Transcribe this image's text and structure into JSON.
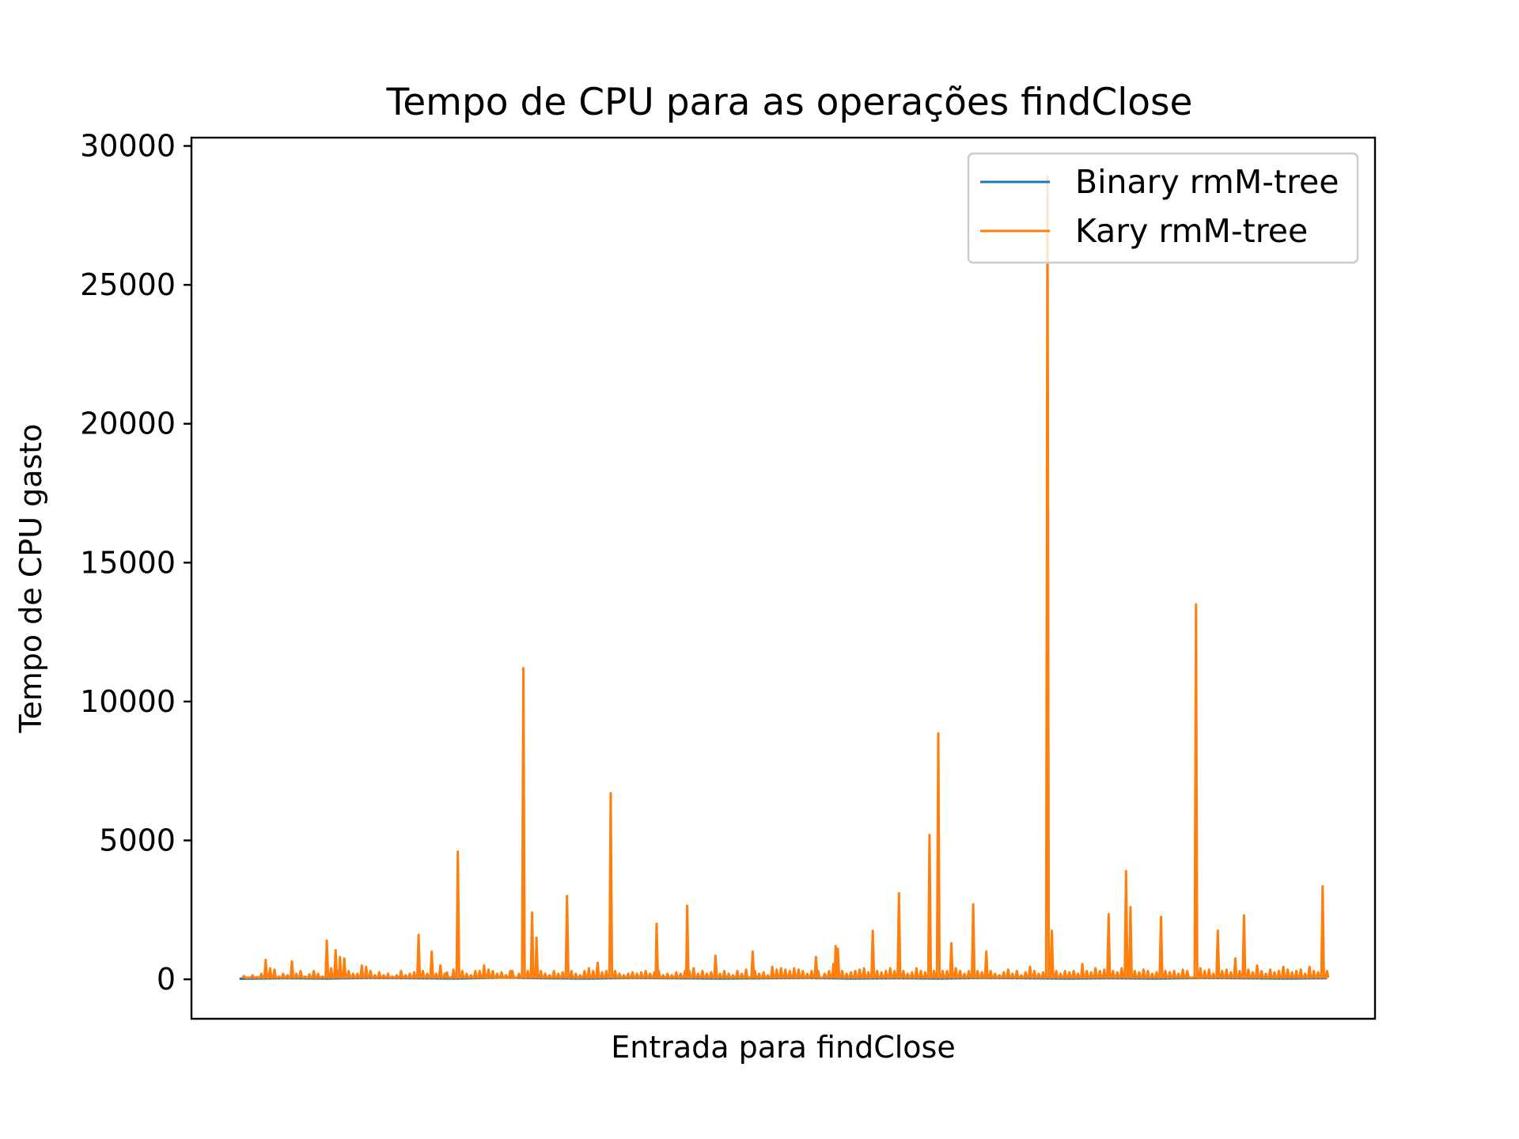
{
  "chart_data": {
    "type": "line",
    "title": "Tempo de CPU para as operações findClose",
    "xlabel": "Entrada para findClose",
    "ylabel": "Tempo de CPU gasto",
    "ylim": [
      -1420,
      30300
    ],
    "xlim": [
      -22,
      520
    ],
    "yticks": [
      0,
      5000,
      10000,
      15000,
      20000,
      25000,
      30000
    ],
    "ytick_labels": [
      "0",
      "5000",
      "10000",
      "15000",
      "20000",
      "25000",
      "30000"
    ],
    "xticks_visible": false,
    "grid": false,
    "legend_position": "top-right",
    "series": [
      {
        "name": "Binary rmM-tree",
        "color": "#1f77b4",
        "x": [
          0,
          20,
          40,
          60,
          80,
          100,
          120,
          140,
          160,
          180,
          200,
          220,
          240,
          260,
          280,
          300,
          320,
          340,
          360,
          380,
          400,
          420,
          440,
          460,
          480,
          498
        ],
        "y": [
          20,
          40,
          30,
          50,
          40,
          30,
          60,
          40,
          30,
          50,
          40,
          30,
          40,
          50,
          30,
          40,
          30,
          50,
          40,
          30,
          40,
          30,
          50,
          40,
          30,
          40
        ]
      },
      {
        "name": "Kary rmM-tree",
        "color": "#ff7f0e",
        "baseline": 60,
        "peaks": [
          [
            2,
            120
          ],
          [
            4,
            60
          ],
          [
            6,
            150
          ],
          [
            8,
            80
          ],
          [
            10,
            200
          ],
          [
            12,
            700
          ],
          [
            14,
            400
          ],
          [
            16,
            350
          ],
          [
            18,
            100
          ],
          [
            20,
            200
          ],
          [
            22,
            150
          ],
          [
            24,
            650
          ],
          [
            26,
            200
          ],
          [
            28,
            300
          ],
          [
            30,
            100
          ],
          [
            32,
            180
          ],
          [
            34,
            300
          ],
          [
            36,
            200
          ],
          [
            38,
            100
          ],
          [
            40,
            1400
          ],
          [
            42,
            400
          ],
          [
            44,
            1050
          ],
          [
            45,
            300
          ],
          [
            46,
            800
          ],
          [
            48,
            750
          ],
          [
            50,
            300
          ],
          [
            52,
            200
          ],
          [
            54,
            200
          ],
          [
            56,
            500
          ],
          [
            58,
            450
          ],
          [
            60,
            300
          ],
          [
            62,
            150
          ],
          [
            64,
            250
          ],
          [
            66,
            150
          ],
          [
            68,
            200
          ],
          [
            70,
            100
          ],
          [
            72,
            150
          ],
          [
            74,
            300
          ],
          [
            76,
            150
          ],
          [
            78,
            200
          ],
          [
            80,
            250
          ],
          [
            82,
            1600
          ],
          [
            84,
            300
          ],
          [
            86,
            200
          ],
          [
            88,
            1000
          ],
          [
            90,
            200
          ],
          [
            92,
            500
          ],
          [
            94,
            200
          ],
          [
            95,
            250
          ],
          [
            98,
            350
          ],
          [
            100,
            4600
          ],
          [
            102,
            300
          ],
          [
            104,
            200
          ],
          [
            106,
            150
          ],
          [
            108,
            300
          ],
          [
            110,
            300
          ],
          [
            112,
            500
          ],
          [
            114,
            350
          ],
          [
            116,
            300
          ],
          [
            118,
            200
          ],
          [
            120,
            250
          ],
          [
            122,
            150
          ],
          [
            124,
            300
          ],
          [
            125,
            300
          ],
          [
            128,
            200
          ],
          [
            130,
            11200
          ],
          [
            132,
            300
          ],
          [
            134,
            2400
          ],
          [
            135,
            350
          ],
          [
            136,
            1500
          ],
          [
            138,
            300
          ],
          [
            140,
            200
          ],
          [
            142,
            150
          ],
          [
            144,
            300
          ],
          [
            146,
            200
          ],
          [
            148,
            250
          ],
          [
            150,
            3000
          ],
          [
            152,
            300
          ],
          [
            154,
            200
          ],
          [
            156,
            150
          ],
          [
            158,
            300
          ],
          [
            160,
            400
          ],
          [
            162,
            300
          ],
          [
            164,
            600
          ],
          [
            166,
            250
          ],
          [
            168,
            300
          ],
          [
            170,
            6700
          ],
          [
            172,
            300
          ],
          [
            174,
            200
          ],
          [
            176,
            150
          ],
          [
            178,
            200
          ],
          [
            180,
            250
          ],
          [
            182,
            200
          ],
          [
            184,
            250
          ],
          [
            186,
            300
          ],
          [
            188,
            200
          ],
          [
            190,
            250
          ],
          [
            191,
            2000
          ],
          [
            192,
            300
          ],
          [
            194,
            150
          ],
          [
            196,
            200
          ],
          [
            198,
            150
          ],
          [
            200,
            250
          ],
          [
            202,
            200
          ],
          [
            204,
            300
          ],
          [
            205,
            2650
          ],
          [
            206,
            300
          ],
          [
            208,
            400
          ],
          [
            210,
            200
          ],
          [
            212,
            300
          ],
          [
            214,
            200
          ],
          [
            216,
            250
          ],
          [
            218,
            850
          ],
          [
            220,
            200
          ],
          [
            222,
            300
          ],
          [
            224,
            200
          ],
          [
            226,
            150
          ],
          [
            228,
            300
          ],
          [
            230,
            200
          ],
          [
            232,
            350
          ],
          [
            235,
            1000
          ],
          [
            236,
            300
          ],
          [
            238,
            200
          ],
          [
            240,
            250
          ],
          [
            242,
            150
          ],
          [
            244,
            450
          ],
          [
            246,
            350
          ],
          [
            248,
            400
          ],
          [
            250,
            350
          ],
          [
            252,
            300
          ],
          [
            254,
            400
          ],
          [
            256,
            350
          ],
          [
            258,
            300
          ],
          [
            260,
            200
          ],
          [
            262,
            300
          ],
          [
            264,
            800
          ],
          [
            265,
            300
          ],
          [
            268,
            200
          ],
          [
            270,
            300
          ],
          [
            272,
            550
          ],
          [
            273,
            1200
          ],
          [
            274,
            1100
          ],
          [
            276,
            300
          ],
          [
            278,
            200
          ],
          [
            280,
            250
          ],
          [
            282,
            300
          ],
          [
            284,
            350
          ],
          [
            286,
            400
          ],
          [
            288,
            250
          ],
          [
            290,
            1750
          ],
          [
            292,
            300
          ],
          [
            294,
            250
          ],
          [
            296,
            300
          ],
          [
            298,
            400
          ],
          [
            300,
            300
          ],
          [
            302,
            3100
          ],
          [
            304,
            300
          ],
          [
            306,
            200
          ],
          [
            308,
            250
          ],
          [
            310,
            400
          ],
          [
            312,
            300
          ],
          [
            314,
            250
          ],
          [
            316,
            5200
          ],
          [
            318,
            300
          ],
          [
            320,
            8850
          ],
          [
            322,
            300
          ],
          [
            324,
            300
          ],
          [
            326,
            1300
          ],
          [
            328,
            400
          ],
          [
            330,
            300
          ],
          [
            332,
            200
          ],
          [
            334,
            300
          ],
          [
            336,
            2700
          ],
          [
            338,
            300
          ],
          [
            340,
            250
          ],
          [
            342,
            1000
          ],
          [
            344,
            300
          ],
          [
            346,
            200
          ],
          [
            348,
            150
          ],
          [
            350,
            250
          ],
          [
            352,
            350
          ],
          [
            354,
            200
          ],
          [
            356,
            300
          ],
          [
            358,
            150
          ],
          [
            360,
            250
          ],
          [
            362,
            450
          ],
          [
            364,
            300
          ],
          [
            366,
            200
          ],
          [
            368,
            250
          ],
          [
            370,
            28900
          ],
          [
            372,
            1750
          ],
          [
            374,
            300
          ],
          [
            376,
            200
          ],
          [
            378,
            300
          ],
          [
            380,
            250
          ],
          [
            382,
            300
          ],
          [
            384,
            200
          ],
          [
            386,
            550
          ],
          [
            388,
            300
          ],
          [
            390,
            250
          ],
          [
            392,
            400
          ],
          [
            394,
            300
          ],
          [
            396,
            350
          ],
          [
            398,
            2350
          ],
          [
            400,
            300
          ],
          [
            402,
            250
          ],
          [
            404,
            400
          ],
          [
            406,
            3900
          ],
          [
            408,
            2600
          ],
          [
            410,
            300
          ],
          [
            412,
            250
          ],
          [
            414,
            350
          ],
          [
            416,
            300
          ],
          [
            418,
            200
          ],
          [
            420,
            250
          ],
          [
            422,
            2250
          ],
          [
            424,
            300
          ],
          [
            426,
            250
          ],
          [
            428,
            300
          ],
          [
            430,
            200
          ],
          [
            432,
            350
          ],
          [
            434,
            300
          ],
          [
            438,
            13500
          ],
          [
            440,
            400
          ],
          [
            442,
            300
          ],
          [
            444,
            350
          ],
          [
            446,
            200
          ],
          [
            448,
            1750
          ],
          [
            450,
            300
          ],
          [
            452,
            350
          ],
          [
            454,
            250
          ],
          [
            456,
            750
          ],
          [
            458,
            300
          ],
          [
            460,
            2300
          ],
          [
            462,
            350
          ],
          [
            464,
            250
          ],
          [
            466,
            500
          ],
          [
            468,
            300
          ],
          [
            470,
            200
          ],
          [
            472,
            350
          ],
          [
            474,
            250
          ],
          [
            476,
            300
          ],
          [
            478,
            450
          ],
          [
            480,
            350
          ],
          [
            482,
            250
          ],
          [
            484,
            300
          ],
          [
            486,
            350
          ],
          [
            488,
            200
          ],
          [
            490,
            450
          ],
          [
            492,
            300
          ],
          [
            494,
            250
          ],
          [
            496,
            3350
          ],
          [
            498,
            300
          ]
        ]
      }
    ]
  }
}
